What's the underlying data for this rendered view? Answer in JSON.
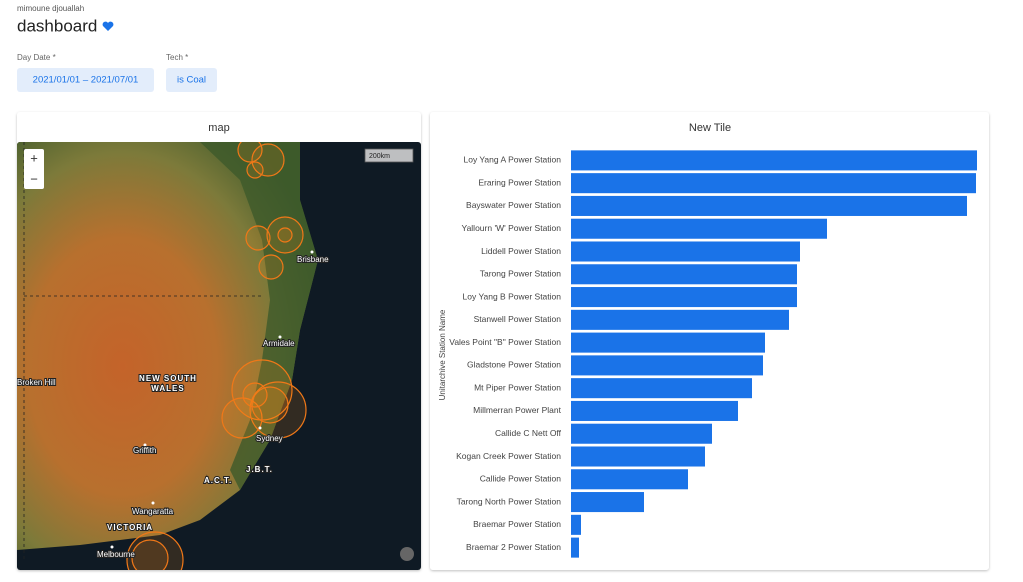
{
  "header": {
    "user": "mimoune djouallah",
    "title": "dashboard"
  },
  "filters": [
    {
      "label": "Day Date *",
      "value": "2021/01/01 – 2021/07/01"
    },
    {
      "label": "Tech *",
      "value": "is Coal"
    }
  ],
  "map": {
    "title": "map",
    "zoom_in": "+",
    "zoom_out": "−",
    "scale": "200km",
    "places": [
      "Brisbane",
      "Armidale",
      "Broken Hill",
      "NEW SOUTH",
      "WALES",
      "Sydney",
      "Griffith",
      "A.C.T.",
      "J.B.T.",
      "Wangaratta",
      "VICTORIA",
      "Melbourne"
    ]
  },
  "chart_data": {
    "type": "bar",
    "title": "New Tile",
    "y_label": "Unitarchive Station Name",
    "color": "#1a73e8",
    "categories": [
      "Loy Yang A Power Station",
      "Eraring Power Station",
      "Bayswater Power Station",
      "Yallourn 'W' Power Station",
      "Liddell Power Station",
      "Tarong Power Station",
      "Loy Yang B Power Station",
      "Stanwell Power Station",
      "Vales Point \"B\" Power Station",
      "Gladstone Power Station",
      "Mt Piper Power Station",
      "Millmerran Power Plant",
      "Callide C Nett Off",
      "Kogan Creek Power Station",
      "Callide Power Station",
      "Tarong North Power Station",
      "Braemar Power Station",
      "Braemar 2 Power Station"
    ],
    "values": [
      406,
      405,
      396,
      256,
      229,
      226,
      226,
      218,
      194,
      192,
      181,
      167,
      141,
      134,
      117,
      73,
      10,
      8
    ]
  }
}
